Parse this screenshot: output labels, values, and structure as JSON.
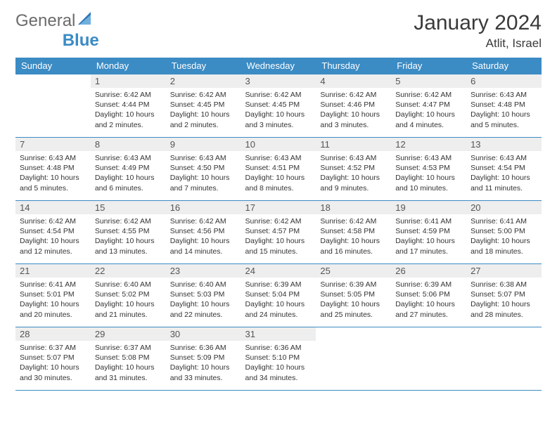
{
  "logo": {
    "general": "General",
    "blue": "Blue"
  },
  "header": {
    "month_title": "January 2024",
    "location": "Atlit, Israel"
  },
  "colors": {
    "header_bg": "#3b8bc4",
    "header_text": "#ffffff",
    "daynum_bg": "#eeeeee",
    "border": "#3b8bc4",
    "body_text": "#333333"
  },
  "weekdays": [
    "Sunday",
    "Monday",
    "Tuesday",
    "Wednesday",
    "Thursday",
    "Friday",
    "Saturday"
  ],
  "weeks": [
    [
      null,
      {
        "n": "1",
        "sr": "Sunrise: 6:42 AM",
        "ss": "Sunset: 4:44 PM",
        "dl": "Daylight: 10 hours and 2 minutes."
      },
      {
        "n": "2",
        "sr": "Sunrise: 6:42 AM",
        "ss": "Sunset: 4:45 PM",
        "dl": "Daylight: 10 hours and 2 minutes."
      },
      {
        "n": "3",
        "sr": "Sunrise: 6:42 AM",
        "ss": "Sunset: 4:45 PM",
        "dl": "Daylight: 10 hours and 3 minutes."
      },
      {
        "n": "4",
        "sr": "Sunrise: 6:42 AM",
        "ss": "Sunset: 4:46 PM",
        "dl": "Daylight: 10 hours and 3 minutes."
      },
      {
        "n": "5",
        "sr": "Sunrise: 6:42 AM",
        "ss": "Sunset: 4:47 PM",
        "dl": "Daylight: 10 hours and 4 minutes."
      },
      {
        "n": "6",
        "sr": "Sunrise: 6:43 AM",
        "ss": "Sunset: 4:48 PM",
        "dl": "Daylight: 10 hours and 5 minutes."
      }
    ],
    [
      {
        "n": "7",
        "sr": "Sunrise: 6:43 AM",
        "ss": "Sunset: 4:48 PM",
        "dl": "Daylight: 10 hours and 5 minutes."
      },
      {
        "n": "8",
        "sr": "Sunrise: 6:43 AM",
        "ss": "Sunset: 4:49 PM",
        "dl": "Daylight: 10 hours and 6 minutes."
      },
      {
        "n": "9",
        "sr": "Sunrise: 6:43 AM",
        "ss": "Sunset: 4:50 PM",
        "dl": "Daylight: 10 hours and 7 minutes."
      },
      {
        "n": "10",
        "sr": "Sunrise: 6:43 AM",
        "ss": "Sunset: 4:51 PM",
        "dl": "Daylight: 10 hours and 8 minutes."
      },
      {
        "n": "11",
        "sr": "Sunrise: 6:43 AM",
        "ss": "Sunset: 4:52 PM",
        "dl": "Daylight: 10 hours and 9 minutes."
      },
      {
        "n": "12",
        "sr": "Sunrise: 6:43 AM",
        "ss": "Sunset: 4:53 PM",
        "dl": "Daylight: 10 hours and 10 minutes."
      },
      {
        "n": "13",
        "sr": "Sunrise: 6:43 AM",
        "ss": "Sunset: 4:54 PM",
        "dl": "Daylight: 10 hours and 11 minutes."
      }
    ],
    [
      {
        "n": "14",
        "sr": "Sunrise: 6:42 AM",
        "ss": "Sunset: 4:54 PM",
        "dl": "Daylight: 10 hours and 12 minutes."
      },
      {
        "n": "15",
        "sr": "Sunrise: 6:42 AM",
        "ss": "Sunset: 4:55 PM",
        "dl": "Daylight: 10 hours and 13 minutes."
      },
      {
        "n": "16",
        "sr": "Sunrise: 6:42 AM",
        "ss": "Sunset: 4:56 PM",
        "dl": "Daylight: 10 hours and 14 minutes."
      },
      {
        "n": "17",
        "sr": "Sunrise: 6:42 AM",
        "ss": "Sunset: 4:57 PM",
        "dl": "Daylight: 10 hours and 15 minutes."
      },
      {
        "n": "18",
        "sr": "Sunrise: 6:42 AM",
        "ss": "Sunset: 4:58 PM",
        "dl": "Daylight: 10 hours and 16 minutes."
      },
      {
        "n": "19",
        "sr": "Sunrise: 6:41 AM",
        "ss": "Sunset: 4:59 PM",
        "dl": "Daylight: 10 hours and 17 minutes."
      },
      {
        "n": "20",
        "sr": "Sunrise: 6:41 AM",
        "ss": "Sunset: 5:00 PM",
        "dl": "Daylight: 10 hours and 18 minutes."
      }
    ],
    [
      {
        "n": "21",
        "sr": "Sunrise: 6:41 AM",
        "ss": "Sunset: 5:01 PM",
        "dl": "Daylight: 10 hours and 20 minutes."
      },
      {
        "n": "22",
        "sr": "Sunrise: 6:40 AM",
        "ss": "Sunset: 5:02 PM",
        "dl": "Daylight: 10 hours and 21 minutes."
      },
      {
        "n": "23",
        "sr": "Sunrise: 6:40 AM",
        "ss": "Sunset: 5:03 PM",
        "dl": "Daylight: 10 hours and 22 minutes."
      },
      {
        "n": "24",
        "sr": "Sunrise: 6:39 AM",
        "ss": "Sunset: 5:04 PM",
        "dl": "Daylight: 10 hours and 24 minutes."
      },
      {
        "n": "25",
        "sr": "Sunrise: 6:39 AM",
        "ss": "Sunset: 5:05 PM",
        "dl": "Daylight: 10 hours and 25 minutes."
      },
      {
        "n": "26",
        "sr": "Sunrise: 6:39 AM",
        "ss": "Sunset: 5:06 PM",
        "dl": "Daylight: 10 hours and 27 minutes."
      },
      {
        "n": "27",
        "sr": "Sunrise: 6:38 AM",
        "ss": "Sunset: 5:07 PM",
        "dl": "Daylight: 10 hours and 28 minutes."
      }
    ],
    [
      {
        "n": "28",
        "sr": "Sunrise: 6:37 AM",
        "ss": "Sunset: 5:07 PM",
        "dl": "Daylight: 10 hours and 30 minutes."
      },
      {
        "n": "29",
        "sr": "Sunrise: 6:37 AM",
        "ss": "Sunset: 5:08 PM",
        "dl": "Daylight: 10 hours and 31 minutes."
      },
      {
        "n": "30",
        "sr": "Sunrise: 6:36 AM",
        "ss": "Sunset: 5:09 PM",
        "dl": "Daylight: 10 hours and 33 minutes."
      },
      {
        "n": "31",
        "sr": "Sunrise: 6:36 AM",
        "ss": "Sunset: 5:10 PM",
        "dl": "Daylight: 10 hours and 34 minutes."
      },
      null,
      null,
      null
    ]
  ]
}
